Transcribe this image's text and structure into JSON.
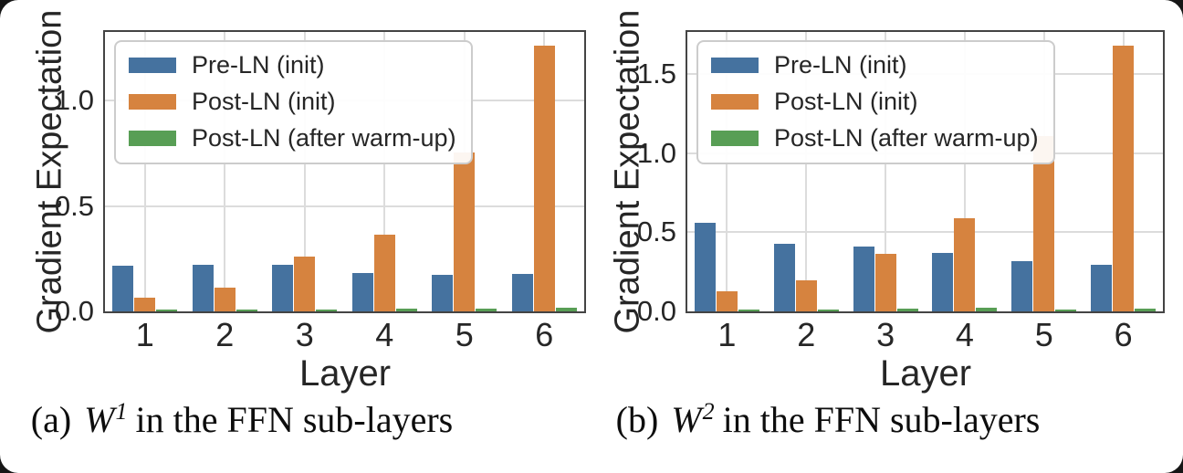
{
  "page": {
    "background": "#161616",
    "card_background": "#ffffff"
  },
  "palette": {
    "pre_ln_blue": "#45729F",
    "post_ln_orange": "#D6833F",
    "post_ln_warmup_green": "#589E55",
    "grid": "#DCDCDC",
    "spine": "#444444",
    "text": "#262626"
  },
  "chart_data": [
    {
      "type": "bar",
      "title": "",
      "xlabel": "Layer",
      "ylabel": "Gradient Expectation",
      "grid": true,
      "legend_position": "upper left",
      "categories": [
        "1",
        "2",
        "3",
        "4",
        "5",
        "6"
      ],
      "ytick_labels": [
        "0.0",
        "0.5",
        "1.0"
      ],
      "ytick_values": [
        0.0,
        0.5,
        1.0
      ],
      "ylim": [
        0,
        1.325
      ],
      "series": [
        {
          "name": "Pre-LN (init)",
          "color": "#45729F",
          "values": [
            0.217,
            0.221,
            0.22,
            0.181,
            0.175,
            0.177
          ]
        },
        {
          "name": "Post-LN (init)",
          "color": "#D6833F",
          "values": [
            0.064,
            0.113,
            0.262,
            0.365,
            0.755,
            1.262
          ]
        },
        {
          "name": "Post-LN (after warm-up)",
          "color": "#589E55",
          "values": [
            0.005,
            0.006,
            0.009,
            0.015,
            0.011,
            0.017
          ]
        }
      ],
      "caption": {
        "index": "(a)",
        "math_base": "W",
        "math_sup": "1",
        "text": "in the FFN sub-layers"
      }
    },
    {
      "type": "bar",
      "title": "",
      "xlabel": "Layer",
      "ylabel": "Gradient Expectation",
      "grid": true,
      "legend_position": "upper left",
      "categories": [
        "1",
        "2",
        "3",
        "4",
        "5",
        "6"
      ],
      "ytick_labels": [
        "0.0",
        "0.5",
        "1.0",
        "1.5"
      ],
      "ytick_values": [
        0.0,
        0.5,
        1.0,
        1.5
      ],
      "ylim": [
        0,
        1.767
      ],
      "series": [
        {
          "name": "Pre-LN (init)",
          "color": "#45729F",
          "values": [
            0.56,
            0.43,
            0.41,
            0.37,
            0.315,
            0.295
          ]
        },
        {
          "name": "Post-LN (init)",
          "color": "#D6833F",
          "values": [
            0.13,
            0.197,
            0.365,
            0.59,
            1.11,
            1.68
          ]
        },
        {
          "name": "Post-LN (after warm-up)",
          "color": "#589E55",
          "values": [
            0.013,
            0.014,
            0.017,
            0.021,
            0.013,
            0.018
          ]
        }
      ],
      "caption": {
        "index": "(b)",
        "math_base": "W",
        "math_sup": "2",
        "text": "in the FFN sub-layers"
      }
    }
  ]
}
